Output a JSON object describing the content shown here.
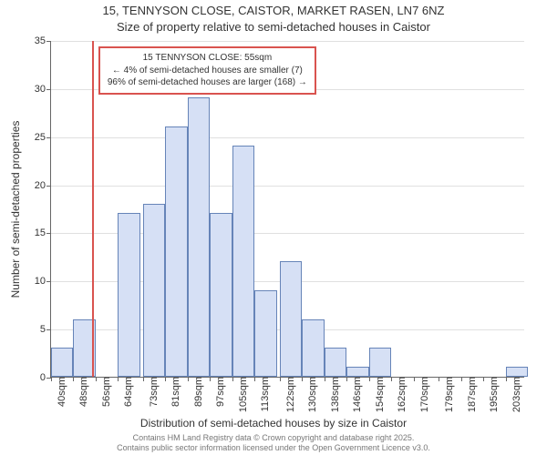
{
  "chart": {
    "type": "histogram",
    "title_line1": "15, TENNYSON CLOSE, CAISTOR, MARKET RASEN, LN7 6NZ",
    "title_line2": "Size of property relative to semi-detached houses in Caistor",
    "y_axis_label": "Number of semi-detached properties",
    "x_axis_label": "Distribution of semi-detached houses by size in Caistor",
    "ylim": [
      0,
      35
    ],
    "ytick_step": 5,
    "xlim": [
      40,
      210
    ],
    "x_ticks": [
      40,
      48,
      56,
      64,
      73,
      81,
      89,
      97,
      105,
      113,
      122,
      130,
      138,
      146,
      154,
      162,
      170,
      179,
      187,
      195,
      203
    ],
    "x_tick_suffix": "sqm",
    "bars": [
      {
        "x": 40,
        "v": 3
      },
      {
        "x": 48,
        "v": 6
      },
      {
        "x": 56,
        "v": 0
      },
      {
        "x": 64,
        "v": 17
      },
      {
        "x": 73,
        "v": 18
      },
      {
        "x": 81,
        "v": 26
      },
      {
        "x": 89,
        "v": 29
      },
      {
        "x": 97,
        "v": 17
      },
      {
        "x": 105,
        "v": 24
      },
      {
        "x": 113,
        "v": 9
      },
      {
        "x": 122,
        "v": 12
      },
      {
        "x": 130,
        "v": 6
      },
      {
        "x": 138,
        "v": 3
      },
      {
        "x": 146,
        "v": 1
      },
      {
        "x": 154,
        "v": 3
      },
      {
        "x": 162,
        "v": 0
      },
      {
        "x": 170,
        "v": 0
      },
      {
        "x": 179,
        "v": 0
      },
      {
        "x": 187,
        "v": 0
      },
      {
        "x": 195,
        "v": 0
      },
      {
        "x": 203,
        "v": 1
      }
    ],
    "bar_width_units": 8,
    "bar_fill": "#d6e0f5",
    "bar_stroke": "#6684b8",
    "highlight_line_x": 55,
    "highlight_line_color": "#d9534f",
    "callout": {
      "line1": "15 TENNYSON CLOSE: 55sqm",
      "line2": "← 4% of semi-detached houses are smaller (7)",
      "line3": "96% of semi-detached houses are larger (168) →",
      "border_color": "#d9534f",
      "bg_color": "#ffffff"
    },
    "grid_color": "#e0e0e0",
    "background_color": "#ffffff",
    "attribution_line1": "Contains HM Land Registry data © Crown copyright and database right 2025.",
    "attribution_line2": "Contains public sector information licensed under the Open Government Licence v3.0."
  }
}
